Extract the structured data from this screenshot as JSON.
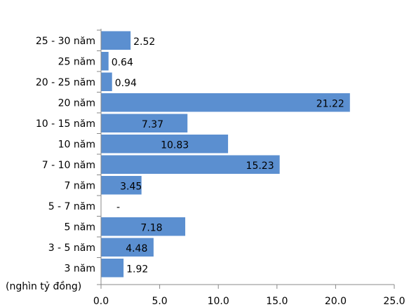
{
  "chart_data": {
    "type": "bar",
    "orientation": "horizontal",
    "categories": [
      "25 - 30 năm",
      "25 năm",
      "20 - 25 năm",
      "20 năm",
      "10 - 15 năm",
      "10 năm",
      "7 - 10 năm",
      "7 năm",
      "5 - 7 năm",
      "5 năm",
      "3 - 5 năm",
      "3 năm"
    ],
    "values": [
      2.52,
      0.64,
      0.94,
      21.22,
      7.37,
      10.83,
      15.23,
      3.45,
      null,
      7.18,
      4.48,
      1.92
    ],
    "value_labels": [
      "2.52",
      "0.64",
      "0.94",
      "21.22",
      "7.37",
      "10.83",
      "15.23",
      "3.45",
      "-",
      "7.18",
      "4.48",
      "1.92"
    ],
    "xlabel": "(nghìn tỷ đồng)",
    "ylabel": "",
    "xlim": [
      0,
      25
    ],
    "x_ticks": [
      "0.0",
      "5.0",
      "10.0",
      "15.0",
      "20.0",
      "25.0"
    ],
    "grid": false,
    "legend": "none",
    "bar_color": "#5B8FD0"
  }
}
